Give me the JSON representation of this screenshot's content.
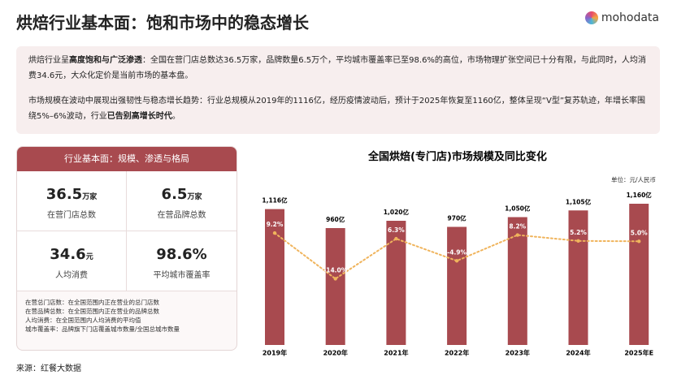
{
  "header": {
    "title": "烘焙行业基本面：饱和市场中的稳态增长",
    "logo": "mohodata"
  },
  "summary": {
    "paragraphs": [
      [
        {
          "text": "烘焙行业呈"
        },
        {
          "text": "高度饱和与广泛渗透",
          "bold": true
        },
        {
          "text": "：全国在营门店总数达36.5万家，品牌数量6.5万个，平均城市覆盖率已至98.6%的高位，市场物理扩张空间已十分有限，与此同时，人均消费34.6元，大众化定价是当前市场的基本盘。"
        }
      ],
      [
        {
          "text": "市场规模在波动中展现出强韧性与稳态增长趋势：行业总规模从2019年的1116亿，经历疫情波动后，预计于2025年恢复至1160亿，整体呈现“V型”复苏轨迹，年增长率围绕5%–6%波动，行业"
        },
        {
          "text": "已告别高增长时代",
          "bold": true
        },
        {
          "text": "。"
        }
      ]
    ]
  },
  "card": {
    "title": "行业基本面：规模、渗透与格局",
    "stats": [
      {
        "value": "36.5",
        "unit": "万家",
        "label": "在营门店总数"
      },
      {
        "value": "6.5",
        "unit": "万家",
        "label": "在营品牌总数"
      },
      {
        "value": "34.6",
        "unit": "元",
        "label": "人均消费"
      },
      {
        "value": "98.6%",
        "label": "平均城市覆盖率"
      }
    ],
    "notes": [
      "在营总门店数：在全国范围内正在营业的总门店数",
      "在营品牌总数：在全国范围内正在营业的品牌总数",
      "人均消费：在全国范围内人均消费的平均值",
      "城市覆盖率：品牌旗下门店覆盖城市数量/全国总城市数量"
    ]
  },
  "source": "来源：红餐大数据",
  "chart_data": {
    "type": "bar",
    "title": "全国烘焙(专门店)市场规模及同比变化",
    "unit_note": "单位：元/人民币",
    "categories": [
      "2019年",
      "2020年",
      "2021年",
      "2022年",
      "2023年",
      "2024年",
      "2025年E"
    ],
    "ylim": [
      0,
      1200
    ],
    "y2lim": [
      -20,
      15
    ],
    "series": [
      {
        "type": "bar",
        "color": "#a84a4f",
        "values": [
          1116,
          960,
          1020,
          970,
          1050,
          1105,
          1160
        ],
        "value_labels": [
          "1,116亿",
          "960亿",
          "1,020亿",
          "970亿",
          "1,050亿",
          "1,105亿",
          "1,160亿"
        ]
      },
      {
        "type": "line",
        "axis": "y2",
        "color": "#f0b45c",
        "values": [
          9.2,
          -14.0,
          6.3,
          -4.9,
          8.2,
          5.2,
          5.0
        ],
        "value_labels": [
          "9.2%",
          "-14.0%",
          "6.3%",
          "-4.9%",
          "8.2%",
          "5.2%",
          "5.0%"
        ]
      }
    ]
  }
}
